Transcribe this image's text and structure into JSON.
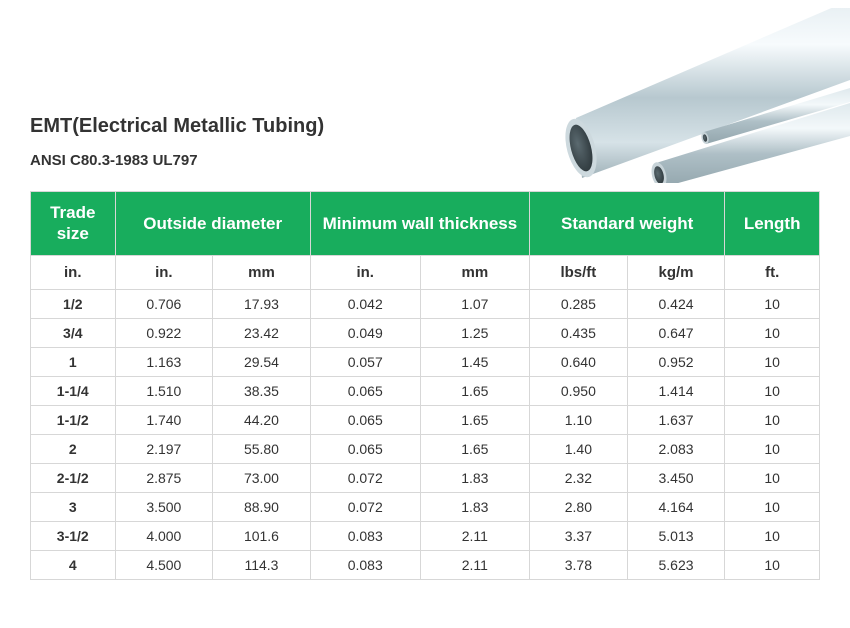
{
  "title": "EMT(Electrical Metallic Tubing)",
  "subtitle": "ANSI C80.3-1983 UL797",
  "image_alt": "steel-tubing-photo",
  "table": {
    "header_bg": "#18ad5d",
    "header_fg": "#ffffff",
    "border_color": "#d7d7d7",
    "groups": [
      {
        "label": "Trade size",
        "span": 1
      },
      {
        "label": "Outside diameter",
        "span": 2
      },
      {
        "label": "Minimum wall thickness",
        "span": 2
      },
      {
        "label": "Standard weight",
        "span": 2
      },
      {
        "label": "Length",
        "span": 1
      }
    ],
    "units": [
      "in.",
      "in.",
      "mm",
      "in.",
      "mm",
      "lbs/ft",
      "kg/m",
      "ft."
    ],
    "rows": [
      [
        "1/2",
        "0.706",
        "17.93",
        "0.042",
        "1.07",
        "0.285",
        "0.424",
        "10"
      ],
      [
        "3/4",
        "0.922",
        "23.42",
        "0.049",
        "1.25",
        "0.435",
        "0.647",
        "10"
      ],
      [
        "1",
        "1.163",
        "29.54",
        "0.057",
        "1.45",
        "0.640",
        "0.952",
        "10"
      ],
      [
        "1-1/4",
        "1.510",
        "38.35",
        "0.065",
        "1.65",
        "0.950",
        "1.414",
        "10"
      ],
      [
        "1-1/2",
        "1.740",
        "44.20",
        "0.065",
        "1.65",
        "1.10",
        "1.637",
        "10"
      ],
      [
        "2",
        "2.197",
        "55.80",
        "0.065",
        "1.65",
        "1.40",
        "2.083",
        "10"
      ],
      [
        "2-1/2",
        "2.875",
        "73.00",
        "0.072",
        "1.83",
        "2.32",
        "3.450",
        "10"
      ],
      [
        "3",
        "3.500",
        "88.90",
        "0.072",
        "1.83",
        "2.80",
        "4.164",
        "10"
      ],
      [
        "3-1/2",
        "4.000",
        "101.6",
        "0.083",
        "2.11",
        "3.37",
        "5.013",
        "10"
      ],
      [
        "4",
        "4.500",
        "114.3",
        "0.083",
        "2.11",
        "3.78",
        "5.623",
        "10"
      ]
    ]
  }
}
